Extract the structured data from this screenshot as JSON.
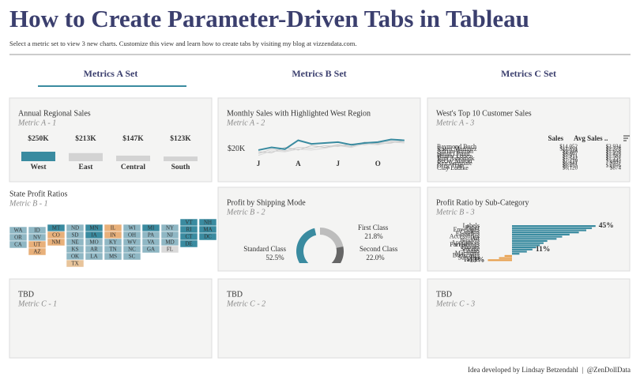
{
  "header": {
    "title": "How to Create Parameter-Driven Tabs in Tableau",
    "subtitle": "Select a metric set to view 3 new charts. Customize this view and learn how to create tabs by visiting my blog at vizzendata.com."
  },
  "tabs": {
    "items": [
      "Metrics A Set",
      "Metrics B Set",
      "Metrics C Set"
    ],
    "active": 0,
    "color": "#3a8ba0"
  },
  "panels": [
    {
      "title": "Annual Regional Sales",
      "subtitle": "Metric A - 1",
      "chart": {
        "type": "bar",
        "categories": [
          "West",
          "East",
          "Central",
          "South"
        ],
        "values": [
          250000,
          213000,
          147000,
          123000
        ],
        "value_labels": [
          "$250K",
          "$213K",
          "$147K",
          "$123K"
        ],
        "colors": [
          "#3a8ba0",
          "#d3d3d3",
          "#d3d3d3",
          "#d3d3d3"
        ]
      }
    },
    {
      "title": "Monthly Sales with Highlighted West Region",
      "subtitle": "Metric A - 2",
      "chart": {
        "type": "line",
        "categories": [
          "J",
          null,
          null,
          "A",
          null,
          null,
          "J",
          null,
          null,
          "O",
          null,
          null
        ],
        "ylim": [
          10000,
          35000
        ],
        "yticks": [
          {
            "value": 20000,
            "label": "$20K"
          }
        ],
        "series": [
          {
            "color": "#d0d0d0",
            "values": [
              15000,
              20000,
              18000,
              22000,
              21000,
              24000,
              23000,
              26000,
              25000,
              27000,
              29000,
              28000
            ]
          },
          {
            "color": "#c4c4c4",
            "values": [
              17000,
              16000,
              22000,
              19000,
              24000,
              22000,
              25000,
              23000,
              28000,
              26000,
              27000,
              30000
            ]
          },
          {
            "color": "#d8d8d8",
            "values": [
              13000,
              18000,
              17000,
              20000,
              19000,
              21000,
              24000,
              22000,
              26000,
              25000,
              28000,
              27000
            ]
          },
          {
            "color": "#3a8ba0",
            "values": [
              19000,
              22000,
              20000,
              30000,
              26000,
              27000,
              28000,
              25000,
              27000,
              28000,
              31000,
              30000
            ]
          }
        ]
      }
    },
    {
      "title": "West's Top 10 Customer Sales",
      "subtitle": "Metric A - 3",
      "chart": {
        "type": "table",
        "columns": [
          "Sales",
          "Avg Sales .."
        ],
        "rows": [
          [
            "Raymond Buch",
            "$14,052",
            "$2,934"
          ],
          [
            "Karen Martinez",
            "$11,891",
            "$2,378"
          ],
          [
            "Adrian Barton",
            "$9,948",
            "$1,658"
          ],
          [
            "Sanjit Chand",
            "$8,867",
            "$1,478"
          ],
          [
            "Hunter Lopez",
            "$7,911",
            "$1,582"
          ],
          [
            "Tom Ashbrook",
            "$7,542",
            "$1,257"
          ],
          [
            "Becky Martin",
            "$7,210",
            "$1,442"
          ],
          [
            "Ken Lonsdale",
            "$6,841",
            "$977"
          ],
          [
            "Greg Tran",
            "$6,455",
            "$1,076"
          ],
          [
            "Clay Ludtke",
            "$6,120",
            "$874"
          ]
        ]
      }
    },
    {
      "title": "State Profit Ratios",
      "subtitle": "Metric B - 1",
      "chart": {
        "type": "tilemap",
        "columns": [
          [
            {
              "state": "WA",
              "color": "#8fb7c4"
            },
            {
              "state": "OR",
              "color": "#8fb7c4"
            },
            {
              "state": "CA",
              "color": "#8fb7c4"
            }
          ],
          [
            {
              "state": "ID",
              "color": "#8fb7c4"
            },
            {
              "state": "NV",
              "color": "#8fb7c4"
            },
            {
              "state": "UT",
              "color": "#e8b07a"
            },
            {
              "state": "AZ",
              "color": "#e8b07a"
            }
          ],
          [
            {
              "state": "MT",
              "color": "#3a8ba0"
            },
            {
              "state": "CO",
              "color": "#e8b07a"
            },
            {
              "state": "NM",
              "color": "#e8b07a"
            }
          ],
          [
            {
              "state": "ND",
              "color": "#8fb7c4"
            },
            {
              "state": "SD",
              "color": "#8fb7c4"
            },
            {
              "state": "NE",
              "color": "#8fb7c4"
            },
            {
              "state": "KS",
              "color": "#8fb7c4"
            },
            {
              "state": "OK",
              "color": "#8fb7c4"
            },
            {
              "state": "TX",
              "color": "#e8c49a"
            }
          ],
          [
            {
              "state": "MN",
              "color": "#3a8ba0"
            },
            {
              "state": "IA",
              "color": "#3a8ba0"
            },
            {
              "state": "MO",
              "color": "#8fb7c4"
            },
            {
              "state": "AR",
              "color": "#8fb7c4"
            },
            {
              "state": "LA",
              "color": "#8fb7c4"
            }
          ],
          [
            {
              "state": "IL",
              "color": "#e8b07a"
            },
            {
              "state": "IN",
              "color": "#e8b07a"
            },
            {
              "state": "KY",
              "color": "#8fb7c4"
            },
            {
              "state": "TN",
              "color": "#8fb7c4"
            },
            {
              "state": "MS",
              "color": "#8fb7c4"
            }
          ],
          [
            {
              "state": "WI",
              "color": "#8fb7c4"
            },
            {
              "state": "OH",
              "color": "#8fb7c4"
            },
            {
              "state": "WV",
              "color": "#8fb7c4"
            },
            {
              "state": "NC",
              "color": "#8fb7c4"
            },
            {
              "state": "SC",
              "color": "#8fb7c4"
            }
          ],
          [
            {
              "state": "MI",
              "color": "#3a8ba0"
            },
            {
              "state": "PA",
              "color": "#8fb7c4"
            },
            {
              "state": "VA",
              "color": "#8fb7c4"
            },
            {
              "state": "GA",
              "color": "#8fb7c4"
            }
          ],
          [
            {
              "state": "NY",
              "color": "#8fb7c4"
            },
            {
              "state": "NJ",
              "color": "#8fb7c4"
            },
            {
              "state": "MD",
              "color": "#8fb7c4"
            },
            {
              "state": "FL",
              "color": "#d9d9d9"
            }
          ],
          [
            {
              "state": "VT",
              "color": "#3a8ba0"
            },
            {
              "state": "RI",
              "color": "#3a8ba0"
            },
            {
              "state": "CT",
              "color": "#3a8ba0"
            },
            {
              "state": "DE",
              "color": "#3a8ba0"
            }
          ],
          [
            {
              "state": "NH",
              "color": "#3a8ba0"
            },
            {
              "state": "MA",
              "color": "#3a8ba0"
            },
            {
              "state": "DC",
              "color": "#3a8ba0"
            }
          ]
        ]
      }
    },
    {
      "title": "Profit by Shipping Mode",
      "subtitle": "Metric B - 2",
      "chart": {
        "type": "donut",
        "categories": [
          "First Class",
          "Second Class",
          "Standard Class"
        ],
        "values": [
          21.8,
          22.0,
          52.5
        ],
        "value_labels": [
          "21.8%",
          "22.0%",
          "52.5%"
        ],
        "colors": [
          "#bdbdbd",
          "#666666",
          "#3a8ba0"
        ]
      }
    },
    {
      "title": "Profit Ratio by Sub-Category",
      "subtitle": "Metric B - 3",
      "chart": {
        "type": "hbar",
        "categories": [
          "Labels",
          "Paper",
          "Envelopes",
          "Copiers",
          "Fasteners",
          "Accessories",
          "Art",
          "Binders",
          "Appliances",
          "Furnishings",
          "Phones",
          "Storage",
          "Chairs",
          "Machines",
          "Bookcases",
          "Supplies",
          "Tables"
        ],
        "values": [
          45,
          43,
          40,
          36,
          31,
          27,
          24,
          19,
          17,
          15,
          13,
          11,
          8,
          4,
          -4,
          -7,
          -13
        ],
        "value_labels": [
          "45%",
          null,
          null,
          null,
          null,
          null,
          null,
          null,
          null,
          null,
          null,
          "11%",
          null,
          null,
          null,
          null,
          "-13%"
        ],
        "colors": {
          "positive": "#3a8ba0",
          "negative": "#e8a04e"
        }
      }
    },
    {
      "title": "TBD",
      "subtitle": "Metric C - 1"
    },
    {
      "title": "TBD",
      "subtitle": "Metric C - 2"
    },
    {
      "title": "TBD",
      "subtitle": "Metric C - 3"
    }
  ],
  "footer": "Idea developed by Lindsay Betzendahl  |  @ZenDollData"
}
